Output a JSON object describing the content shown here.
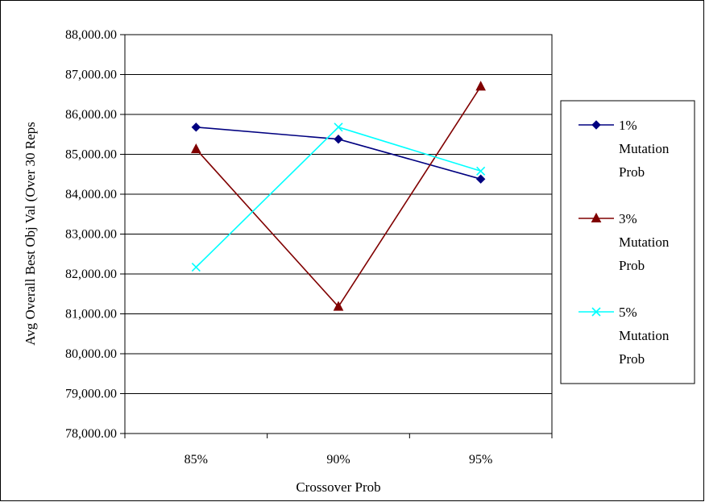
{
  "chart_data": {
    "type": "line",
    "title": "",
    "xlabel": "Crossover Prob",
    "ylabel": "Avg Overall Best Obj Val (Over 30 Reps",
    "categories": [
      "85%",
      "90%",
      "95%"
    ],
    "ylim": [
      78000,
      88000
    ],
    "ytick_step": 1000,
    "ytick_labels": [
      "78,000.00",
      "79,000.00",
      "80,000.00",
      "81,000.00",
      "82,000.00",
      "83,000.00",
      "84,000.00",
      "85,000.00",
      "86,000.00",
      "87,000.00",
      "88,000.00"
    ],
    "grid": true,
    "legend_position": "right",
    "series": [
      {
        "name": "1% Mutation Prob",
        "legend_lines": [
          "1%",
          "Mutation",
          "Prob"
        ],
        "values": [
          85680,
          85380,
          84380
        ],
        "color": "#000080",
        "marker": "diamond"
      },
      {
        "name": "3% Mutation Prob",
        "legend_lines": [
          "3%",
          "Mutation",
          "Prob"
        ],
        "values": [
          85130,
          81180,
          86700
        ],
        "color": "#800000",
        "marker": "triangle"
      },
      {
        "name": "5% Mutation Prob",
        "legend_lines": [
          "5%",
          "Mutation",
          "Prob"
        ],
        "values": [
          82170,
          85680,
          84580
        ],
        "color": "#00FFFF",
        "marker": "x"
      }
    ]
  }
}
